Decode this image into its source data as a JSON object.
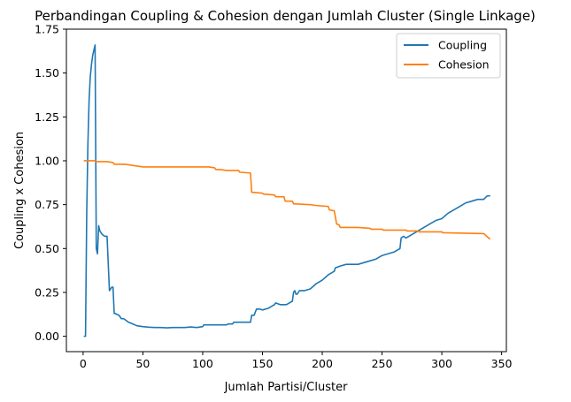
{
  "chart_data": {
    "type": "line",
    "title": "Perbandingan Coupling & Cohesion dengan Jumlah Cluster (Single Linkage)",
    "xlabel": "Jumlah Partisi/Cluster",
    "ylabel": "Coupling x Cohesion",
    "xlim": [
      -14,
      354
    ],
    "ylim": [
      -0.0875,
      1.75
    ],
    "xticks": [
      0,
      50,
      100,
      150,
      200,
      250,
      300,
      350
    ],
    "yticks": [
      0.0,
      0.25,
      0.5,
      0.75,
      1.0,
      1.25,
      1.5,
      1.75
    ],
    "ytick_labels": [
      "0.00",
      "0.25",
      "0.50",
      "0.75",
      "1.00",
      "1.25",
      "1.50",
      "1.75"
    ],
    "grid": false,
    "legend_position": "upper right",
    "series": [
      {
        "name": "Coupling",
        "color": "#1f77b4",
        "x": [
          1,
          2,
          3,
          4,
          5,
          6,
          7,
          8,
          9,
          10,
          11,
          12,
          13,
          14,
          15,
          16,
          18,
          20,
          22,
          24,
          25,
          26,
          27,
          28,
          30,
          32,
          34,
          36,
          38,
          40,
          45,
          50,
          55,
          60,
          65,
          70,
          75,
          80,
          85,
          90,
          95,
          100,
          101,
          105,
          110,
          115,
          120,
          121,
          125,
          126,
          130,
          135,
          140,
          141,
          143,
          145,
          148,
          150,
          155,
          160,
          161,
          165,
          170,
          175,
          176,
          177,
          178,
          179,
          180,
          181,
          185,
          190,
          195,
          200,
          205,
          210,
          211,
          215,
          220,
          225,
          230,
          235,
          240,
          245,
          250,
          255,
          260,
          265,
          266,
          268,
          270,
          275,
          280,
          285,
          290,
          295,
          300,
          305,
          310,
          315,
          320,
          325,
          330,
          335,
          338,
          340
        ],
        "y": [
          0.0,
          0.0,
          0.7,
          1.1,
          1.35,
          1.48,
          1.55,
          1.6,
          1.63,
          1.66,
          0.5,
          0.47,
          0.63,
          0.6,
          0.59,
          0.58,
          0.57,
          0.57,
          0.26,
          0.28,
          0.28,
          0.13,
          0.13,
          0.125,
          0.12,
          0.1,
          0.1,
          0.09,
          0.08,
          0.075,
          0.06,
          0.055,
          0.052,
          0.05,
          0.05,
          0.048,
          0.05,
          0.05,
          0.05,
          0.053,
          0.05,
          0.055,
          0.065,
          0.065,
          0.065,
          0.065,
          0.065,
          0.07,
          0.07,
          0.08,
          0.08,
          0.08,
          0.08,
          0.12,
          0.12,
          0.155,
          0.155,
          0.15,
          0.16,
          0.18,
          0.19,
          0.18,
          0.18,
          0.2,
          0.25,
          0.26,
          0.24,
          0.24,
          0.25,
          0.26,
          0.26,
          0.27,
          0.3,
          0.32,
          0.35,
          0.37,
          0.39,
          0.4,
          0.41,
          0.41,
          0.41,
          0.42,
          0.43,
          0.44,
          0.46,
          0.47,
          0.48,
          0.5,
          0.56,
          0.57,
          0.56,
          0.58,
          0.6,
          0.62,
          0.64,
          0.66,
          0.67,
          0.7,
          0.72,
          0.74,
          0.76,
          0.77,
          0.78,
          0.78,
          0.8,
          0.8
        ]
      },
      {
        "name": "Cohesion",
        "color": "#ff7f0e",
        "x": [
          1,
          10,
          11,
          20,
          25,
          26,
          35,
          40,
          50,
          60,
          80,
          100,
          105,
          110,
          111,
          115,
          120,
          130,
          131,
          140,
          141,
          142,
          150,
          151,
          160,
          161,
          168,
          169,
          175,
          176,
          190,
          195,
          205,
          206,
          210,
          211,
          212,
          214,
          215,
          230,
          240,
          241,
          250,
          251,
          270,
          271,
          280,
          281,
          300,
          301,
          335,
          336,
          340
        ],
        "y": [
          1.0,
          1.0,
          0.995,
          0.995,
          0.99,
          0.98,
          0.98,
          0.975,
          0.965,
          0.965,
          0.965,
          0.965,
          0.965,
          0.96,
          0.95,
          0.95,
          0.945,
          0.945,
          0.935,
          0.93,
          0.82,
          0.82,
          0.815,
          0.81,
          0.805,
          0.795,
          0.795,
          0.77,
          0.77,
          0.755,
          0.75,
          0.745,
          0.74,
          0.72,
          0.715,
          0.68,
          0.64,
          0.635,
          0.62,
          0.62,
          0.615,
          0.61,
          0.61,
          0.605,
          0.605,
          0.6,
          0.6,
          0.595,
          0.595,
          0.59,
          0.585,
          0.58,
          0.555
        ]
      }
    ]
  }
}
